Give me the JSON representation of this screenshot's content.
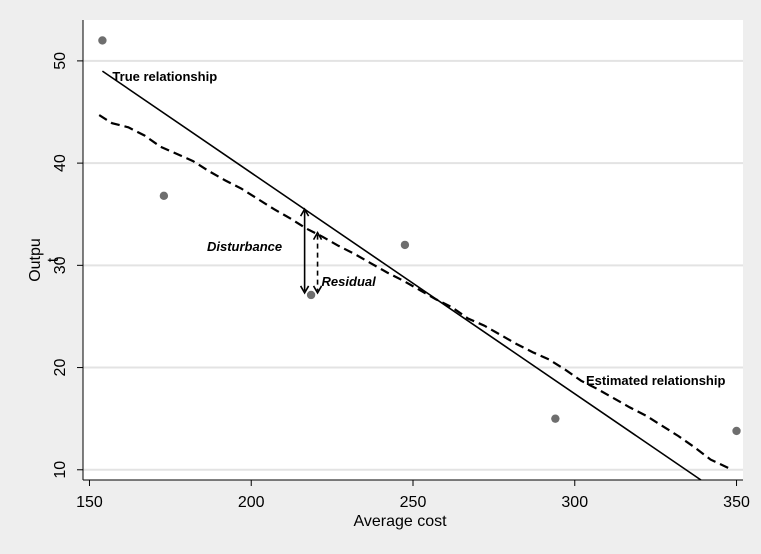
{
  "chart_data": {
    "type": "scatter",
    "xlabel": "Average cost",
    "ylabel_lines": [
      "Outpu",
      "t"
    ],
    "xlim": [
      148,
      352
    ],
    "ylim": [
      9,
      54
    ],
    "x_ticks": [
      150,
      200,
      250,
      300,
      350
    ],
    "y_ticks": [
      10,
      20,
      30,
      40,
      50
    ],
    "grid": "horizontal",
    "points": [
      {
        "x": 154,
        "y": 52
      },
      {
        "x": 173,
        "y": 36.8
      },
      {
        "x": 218.5,
        "y": 27.1
      },
      {
        "x": 247.5,
        "y": 32
      },
      {
        "x": 294,
        "y": 15
      },
      {
        "x": 350,
        "y": 13.8
      }
    ],
    "true_relationship": {
      "label": "True relationship",
      "x": [
        154,
        339
      ],
      "y": [
        49,
        9
      ]
    },
    "estimated_relationship": {
      "label": "Estimated relationship",
      "x": [
        153,
        157,
        162,
        167,
        172,
        177,
        182,
        187,
        192,
        197,
        202,
        207,
        212,
        217,
        222,
        227,
        232,
        237,
        242,
        247,
        252,
        257,
        262,
        267,
        272,
        277,
        282,
        287,
        292,
        297,
        302,
        307,
        312,
        317,
        322,
        327,
        332,
        337,
        342,
        348
      ],
      "y": [
        44.7,
        43.9,
        43.5,
        42.7,
        41.6,
        40.9,
        40.2,
        39.2,
        38.3,
        37.5,
        36.5,
        35.5,
        34.6,
        33.6,
        32.8,
        31.9,
        31.1,
        30.2,
        29.3,
        28.5,
        27.6,
        26.7,
        25.9,
        24.8,
        24.1,
        23.2,
        22.3,
        21.5,
        20.8,
        19.8,
        18.7,
        17.9,
        17.0,
        16.1,
        15.3,
        14.3,
        13.3,
        12.2,
        11.0,
        10.1
      ]
    },
    "disturbance": {
      "label": "Disturbance",
      "x": 216.5,
      "y_from": 35.5,
      "y_to": 27.3
    },
    "residual": {
      "label": "Residual",
      "x": 220.5,
      "y_from": 33.2,
      "y_to": 27.3
    }
  }
}
